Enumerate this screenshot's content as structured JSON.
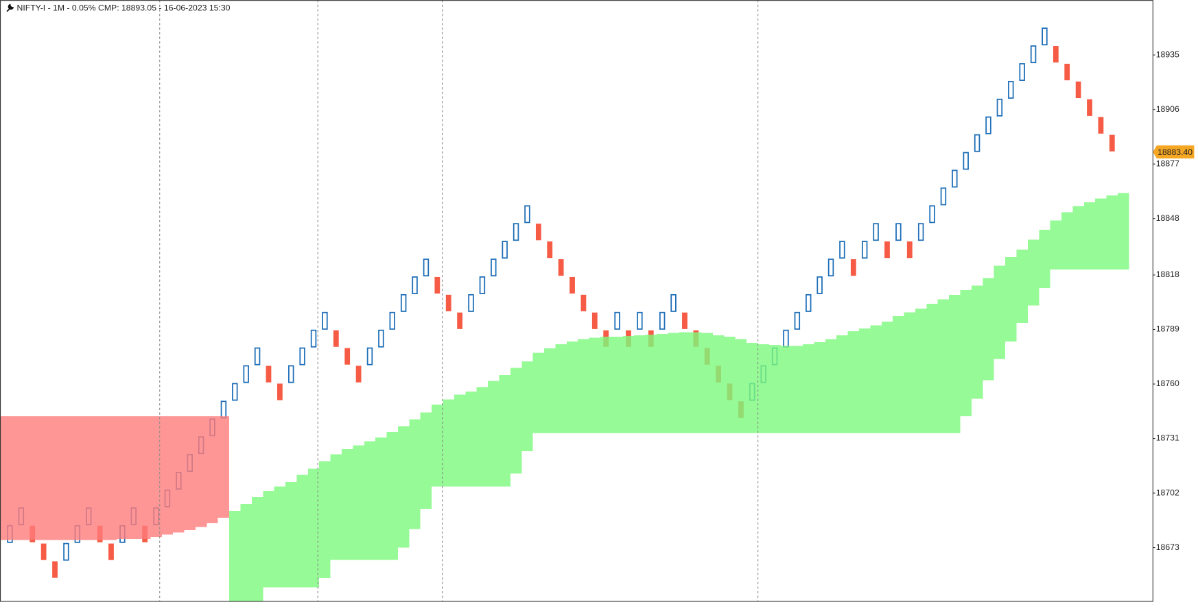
{
  "chart_data": {
    "type": "renko",
    "title": "NIFTY-I - 1M - 0.05% CMP: 18893.05 - 16-06-2023 15:30",
    "ylim": [
      18644.6,
      18964.2
    ],
    "yticks": [
      18673,
      18702,
      18731,
      18760,
      18789,
      18818,
      18848,
      18877,
      18906,
      18935
    ],
    "current": {
      "value": 18883.4,
      "label": "18883.40"
    },
    "current_color": "#f5a623",
    "up_color": "#1f6fb8",
    "down_color": "#f65c45",
    "bricks": {
      "open": [
        18675.5,
        18684.95,
        18684.95,
        18675.5,
        18666.05,
        18666.05,
        18675.5,
        18684.95,
        18684.95,
        18675.5,
        18675.5,
        18684.95,
        18684.95,
        18684.95,
        18694.4,
        18703.85,
        18713.3,
        18722.75,
        18732.2,
        18741.65,
        18751.1,
        18760.55,
        18770,
        18770,
        18760.55,
        18760.55,
        18770,
        18779.45,
        18788.9,
        18788.9,
        18779.45,
        18770,
        18770,
        18779.45,
        18788.9,
        18798.35,
        18807.8,
        18817.25,
        18817.25,
        18807.8,
        18798.35,
        18798.35,
        18807.8,
        18817.25,
        18826.7,
        18836.15,
        18845.6,
        18845.6,
        18836.15,
        18826.7,
        18817.25,
        18807.8,
        18798.35,
        18788.9,
        18788.9,
        18788.9,
        18788.9,
        18788.9,
        18788.9,
        18798.35,
        18798.35,
        18788.9,
        18779.45,
        18770,
        18760.55,
        18751.1,
        18751.1,
        18760.55,
        18770,
        18779.45,
        18788.9,
        18798.35,
        18807.8,
        18817.25,
        18826.7,
        18826.7,
        18826.7,
        18836.15,
        18836.15,
        18836.15,
        18836.15,
        18836.15,
        18845.6,
        18855.05,
        18864.5,
        18873.95,
        18883.4,
        18892.85,
        18902.3,
        18911.75,
        18921.2,
        18930.65,
        18940.1,
        18940.1,
        18930.65,
        18921.2,
        18911.75,
        18902.3,
        18892.85
      ],
      "close": [
        18684.95,
        18694.4,
        18675.5,
        18666.05,
        18656.6,
        18675.5,
        18684.95,
        18694.4,
        18675.5,
        18666.05,
        18684.95,
        18694.4,
        18675.5,
        18694.4,
        18703.85,
        18713.3,
        18722.75,
        18732.2,
        18741.65,
        18751.1,
        18760.55,
        18770,
        18779.45,
        18760.55,
        18751.1,
        18770,
        18779.45,
        18788.9,
        18798.35,
        18779.45,
        18770,
        18760.55,
        18779.45,
        18788.9,
        18798.35,
        18807.8,
        18817.25,
        18826.7,
        18807.8,
        18798.35,
        18788.9,
        18807.8,
        18817.25,
        18826.7,
        18836.15,
        18845.6,
        18855.05,
        18836.15,
        18826.7,
        18817.25,
        18807.8,
        18798.35,
        18788.9,
        18779.45,
        18798.35,
        18779.45,
        18798.35,
        18779.45,
        18798.35,
        18807.8,
        18788.9,
        18779.45,
        18770,
        18760.55,
        18751.1,
        18741.65,
        18760.55,
        18770,
        18779.45,
        18788.9,
        18798.35,
        18807.8,
        18817.25,
        18826.7,
        18836.15,
        18817.25,
        18836.15,
        18845.6,
        18826.7,
        18845.6,
        18826.7,
        18845.6,
        18855.05,
        18864.5,
        18873.95,
        18883.4,
        18892.85,
        18902.3,
        18911.75,
        18921.2,
        18930.65,
        18940.1,
        18949.55,
        18930.65,
        18921.2,
        18911.75,
        18902.3,
        18892.85,
        18883.4
      ]
    },
    "bands": [
      {
        "color": "#ff7c7c",
        "upper": [
          18742.9,
          18742.9,
          18742.9,
          18742.9,
          18742.9,
          18742.9,
          18742.9,
          18742.9,
          18742.9,
          18742.9,
          18742.9,
          18742.9,
          18742.9,
          18742.9,
          18742.9,
          18742.9,
          18742.9,
          18742.9,
          18742.9,
          18742.9,
          null,
          null,
          null,
          null,
          null,
          null,
          null,
          null,
          null,
          null,
          null,
          null,
          null,
          null,
          null,
          null,
          null,
          null,
          null,
          null,
          null,
          null,
          null,
          null,
          null,
          null,
          null,
          null,
          null,
          null,
          null,
          null,
          null,
          null,
          null,
          null,
          null,
          null,
          null,
          null,
          null,
          null,
          null,
          null,
          null,
          null,
          null,
          null,
          null,
          null,
          null,
          null,
          null,
          null,
          null,
          null,
          null,
          null,
          null,
          null,
          null,
          null,
          null,
          null,
          null,
          null,
          null,
          null,
          null,
          null,
          null,
          null,
          null,
          null,
          null,
          null,
          null,
          null,
          null,
          null
        ],
        "lower": [
          18677.1,
          18677.1,
          18677.1,
          18677.1,
          18677.1,
          18677.1,
          18677.1,
          18677.1,
          18677.1,
          18677.1,
          18677.5,
          18677.5,
          18677.5,
          18678.7,
          18679.9,
          18681.1,
          18682.4,
          18684.0,
          18686.0,
          18688.9,
          null,
          null,
          null,
          null,
          null,
          null,
          null,
          null,
          null,
          null,
          null,
          null,
          null,
          null,
          null,
          null,
          null,
          null,
          null,
          null,
          null,
          null,
          null,
          null,
          null,
          null,
          null,
          null,
          null,
          null,
          null,
          null,
          null,
          null,
          null,
          null,
          null,
          null,
          null,
          null,
          null,
          null,
          null,
          null,
          null,
          null,
          null,
          null,
          null,
          null,
          null,
          null,
          null,
          null,
          null,
          null,
          null,
          null,
          null,
          null,
          null,
          null,
          null,
          null,
          null,
          null,
          null,
          null,
          null,
          null,
          null,
          null,
          null,
          null,
          null,
          null,
          null,
          null,
          null,
          null
        ]
      },
      {
        "color": "#7cfa7c",
        "upper": [
          null,
          null,
          null,
          null,
          null,
          null,
          null,
          null,
          null,
          null,
          null,
          null,
          null,
          null,
          null,
          null,
          null,
          null,
          null,
          null,
          18692.5,
          18696.2,
          18699.8,
          18703.1,
          18705.5,
          18707.9,
          18711.6,
          18714.9,
          18718.9,
          18722.6,
          18725.4,
          18727.4,
          18729.5,
          18731.5,
          18734.4,
          18737.6,
          18741.3,
          18744.9,
          18749.0,
          18751.8,
          18754.3,
          18755.9,
          18758.3,
          18761.6,
          18764.8,
          18768.5,
          18772.1,
          18776.6,
          18779.0,
          18781.1,
          18782.7,
          18783.9,
          18784.7,
          18785.1,
          18785.1,
          18785.5,
          18785.9,
          18786.3,
          18786.7,
          18787.2,
          18787.6,
          18787.6,
          18787.2,
          18785.9,
          18785.1,
          18783.9,
          18781.9,
          18781.1,
          18780.7,
          18780.2,
          18780.2,
          18781.1,
          18782.3,
          18783.9,
          18785.9,
          18788.0,
          18789.6,
          18791.2,
          18793.2,
          18796.1,
          18798.1,
          18800.1,
          18802.6,
          18805.0,
          18807.5,
          18809.9,
          18812.3,
          18816.4,
          18822.9,
          18827.4,
          18831.4,
          18836.7,
          18842.0,
          18846.9,
          18851.3,
          18854.6,
          18856.6,
          18858.6,
          18860.3,
          18861.5
        ],
        "lower": [
          null,
          null,
          null,
          null,
          null,
          null,
          null,
          null,
          null,
          null,
          null,
          null,
          null,
          null,
          null,
          null,
          null,
          null,
          null,
          null,
          18644.6,
          18644.6,
          18644.6,
          18651.9,
          18651.9,
          18651.9,
          18651.9,
          18651.9,
          18656.8,
          18666.5,
          18666.5,
          18666.5,
          18666.5,
          18666.5,
          18666.5,
          18673.0,
          18682.8,
          18693.7,
          18705.5,
          18705.5,
          18705.5,
          18705.5,
          18705.5,
          18705.5,
          18705.5,
          18712.4,
          18724.2,
          18733.9,
          18733.9,
          18733.9,
          18733.9,
          18733.9,
          18733.9,
          18733.9,
          18733.9,
          18733.9,
          18733.9,
          18733.9,
          18733.9,
          18733.9,
          18733.9,
          18733.9,
          18733.9,
          18733.9,
          18733.9,
          18733.9,
          18733.9,
          18733.9,
          18733.9,
          18733.9,
          18733.9,
          18733.9,
          18733.9,
          18733.9,
          18733.9,
          18733.9,
          18733.9,
          18733.9,
          18733.9,
          18733.9,
          18733.9,
          18733.9,
          18733.9,
          18733.9,
          18733.9,
          18742.9,
          18752.2,
          18762.0,
          18773.3,
          18782.7,
          18792.4,
          18801.8,
          18811.1,
          18820.9,
          18820.9,
          18820.9,
          18820.9,
          18820.9,
          18820.9,
          18820.9
        ]
      }
    ]
  }
}
